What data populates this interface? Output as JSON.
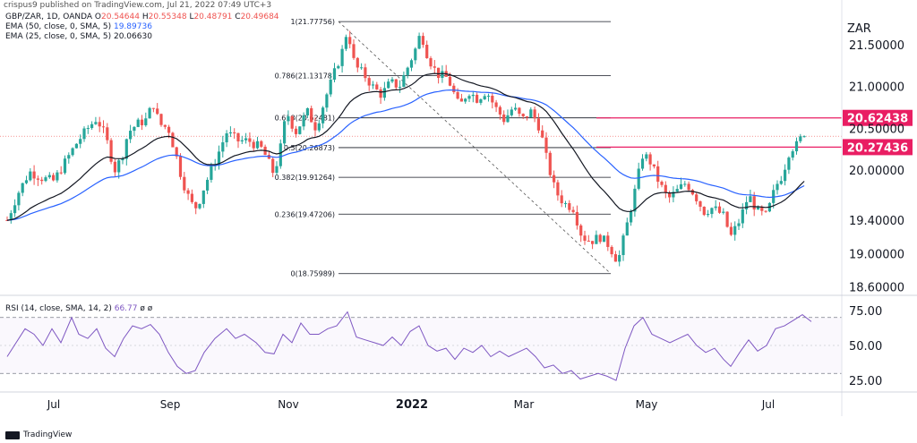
{
  "published": "crispus9 published on TradingView.com, Jul 21, 2022 07:49 UTC+3",
  "brand": "TradingView",
  "currency": "ZAR",
  "legend": {
    "symbol": "GBP/ZAR, 1D, OANDA",
    "ohlc": {
      "O": "20.54644",
      "H": "20.55348",
      "L": "20.48791",
      "C": "20.49684"
    },
    "ema50": {
      "label": "EMA (50, close, 0, SMA, 5)",
      "value": "19.89736",
      "color": "#2962ff"
    },
    "ema25": {
      "label": "EMA (25, close, 0, SMA, 5)",
      "value": "20.06630",
      "color": "#131722"
    },
    "rsi": {
      "label": "RSI (14, close, SMA, 14, 2)",
      "value": "66.77",
      "extra": "ø ø",
      "color": "#7e57c2"
    }
  },
  "colors": {
    "up": "#26a69a",
    "down": "#ef5350",
    "hline": "#e91e63",
    "fib": "#131722"
  },
  "chart_data": [
    {
      "type": "candlestick",
      "x_ticks": [
        "Jul",
        "Sep",
        "Nov",
        "2022",
        "Mar",
        "May",
        "Jul"
      ],
      "y_ticks": [
        "21.50000",
        "21.00000",
        "20.50000",
        "20.00000",
        "19.40000",
        "19.00000",
        "18.60000"
      ],
      "ylim": [
        18.5,
        21.95
      ],
      "approx_close_path": [
        [
          0,
          19.4
        ],
        [
          12,
          19.72
        ],
        [
          25,
          19.98
        ],
        [
          40,
          19.9
        ],
        [
          52,
          19.87
        ],
        [
          65,
          20.1
        ],
        [
          78,
          20.33
        ],
        [
          90,
          20.5
        ],
        [
          100,
          20.62
        ],
        [
          110,
          20.4
        ],
        [
          120,
          20.0
        ],
        [
          128,
          20.15
        ],
        [
          135,
          20.45
        ],
        [
          145,
          20.55
        ],
        [
          155,
          20.6
        ],
        [
          163,
          20.8
        ],
        [
          170,
          20.55
        ],
        [
          180,
          20.5
        ],
        [
          188,
          20.2
        ],
        [
          195,
          19.9
        ],
        [
          205,
          19.6
        ],
        [
          212,
          19.55
        ],
        [
          220,
          19.8
        ],
        [
          232,
          20.1
        ],
        [
          245,
          20.45
        ],
        [
          258,
          20.35
        ],
        [
          270,
          20.35
        ],
        [
          285,
          20.25
        ],
        [
          298,
          19.95
        ],
        [
          305,
          20.25
        ],
        [
          312,
          20.7
        ],
        [
          322,
          20.45
        ],
        [
          335,
          20.7
        ],
        [
          345,
          20.5
        ],
        [
          355,
          20.85
        ],
        [
          365,
          21.15
        ],
        [
          375,
          21.45
        ],
        [
          380,
          21.7
        ],
        [
          388,
          21.25
        ],
        [
          398,
          21.15
        ],
        [
          408,
          21.0
        ],
        [
          418,
          20.9
        ],
        [
          428,
          21.05
        ],
        [
          438,
          21.0
        ],
        [
          446,
          21.2
        ],
        [
          456,
          21.45
        ],
        [
          462,
          21.65
        ],
        [
          470,
          21.35
        ],
        [
          480,
          21.15
        ],
        [
          492,
          21.1
        ],
        [
          505,
          20.75
        ],
        [
          515,
          20.95
        ],
        [
          525,
          20.85
        ],
        [
          535,
          20.95
        ],
        [
          545,
          20.75
        ],
        [
          555,
          20.6
        ],
        [
          565,
          20.75
        ],
        [
          575,
          20.6
        ],
        [
          585,
          20.7
        ],
        [
          595,
          20.5
        ],
        [
          603,
          20.1
        ],
        [
          612,
          19.75
        ],
        [
          622,
          19.6
        ],
        [
          632,
          19.55
        ],
        [
          642,
          19.2
        ],
        [
          652,
          19.15
        ],
        [
          662,
          19.2
        ],
        [
          672,
          19.1
        ],
        [
          682,
          18.9
        ],
        [
          690,
          19.25
        ],
        [
          700,
          19.7
        ],
        [
          710,
          20.2
        ],
        [
          718,
          20.1
        ],
        [
          728,
          19.85
        ],
        [
          738,
          19.65
        ],
        [
          748,
          19.75
        ],
        [
          758,
          19.85
        ],
        [
          768,
          19.7
        ],
        [
          778,
          19.5
        ],
        [
          788,
          19.55
        ],
        [
          800,
          19.45
        ],
        [
          808,
          19.2
        ],
        [
          818,
          19.4
        ],
        [
          828,
          19.7
        ],
        [
          838,
          19.5
        ],
        [
          848,
          19.45
        ],
        [
          858,
          19.8
        ],
        [
          866,
          19.95
        ],
        [
          874,
          20.25
        ],
        [
          882,
          20.3
        ],
        [
          890,
          20.45
        ],
        [
          898,
          20.5
        ]
      ],
      "fib_levels": [
        {
          "label": "1(21.77756)",
          "value": 21.77756
        },
        {
          "label": "0.786(21.13178)",
          "value": 21.13178
        },
        {
          "label": "0.618(20.62481)",
          "value": 20.62481
        },
        {
          "label": "0.5(20.26873)",
          "value": 20.26873
        },
        {
          "label": "0.382(19.91264)",
          "value": 19.91264
        },
        {
          "label": "0.236(19.47206)",
          "value": 19.47206
        },
        {
          "label": "0(18.75989)",
          "value": 18.75989
        }
      ],
      "horizontal_lines": [
        {
          "label": "20.62438",
          "value": 20.62438
        },
        {
          "label": "20.27436",
          "value": 20.27436
        }
      ]
    },
    {
      "type": "line",
      "name": "RSI",
      "y_ticks": [
        "75.00",
        "50.00",
        "25.00"
      ],
      "ylim": [
        18,
        82
      ],
      "bands": [
        70,
        30
      ],
      "approx_values": [
        [
          0,
          42
        ],
        [
          10,
          52
        ],
        [
          20,
          62
        ],
        [
          30,
          58
        ],
        [
          40,
          50
        ],
        [
          50,
          62
        ],
        [
          60,
          52
        ],
        [
          72,
          70
        ],
        [
          80,
          58
        ],
        [
          90,
          55
        ],
        [
          100,
          62
        ],
        [
          110,
          48
        ],
        [
          120,
          42
        ],
        [
          130,
          55
        ],
        [
          140,
          64
        ],
        [
          150,
          62
        ],
        [
          160,
          65
        ],
        [
          170,
          58
        ],
        [
          180,
          45
        ],
        [
          190,
          35
        ],
        [
          200,
          30
        ],
        [
          210,
          32
        ],
        [
          220,
          45
        ],
        [
          232,
          55
        ],
        [
          245,
          62
        ],
        [
          255,
          55
        ],
        [
          265,
          58
        ],
        [
          278,
          52
        ],
        [
          288,
          45
        ],
        [
          298,
          44
        ],
        [
          308,
          58
        ],
        [
          318,
          52
        ],
        [
          328,
          66
        ],
        [
          338,
          58
        ],
        [
          348,
          58
        ],
        [
          358,
          62
        ],
        [
          368,
          64
        ],
        [
          380,
          74
        ],
        [
          390,
          56
        ],
        [
          400,
          54
        ],
        [
          410,
          52
        ],
        [
          420,
          50
        ],
        [
          430,
          56
        ],
        [
          440,
          50
        ],
        [
          450,
          60
        ],
        [
          460,
          64
        ],
        [
          470,
          50
        ],
        [
          480,
          46
        ],
        [
          490,
          48
        ],
        [
          500,
          40
        ],
        [
          510,
          48
        ],
        [
          520,
          45
        ],
        [
          530,
          50
        ],
        [
          540,
          42
        ],
        [
          550,
          46
        ],
        [
          560,
          42
        ],
        [
          570,
          45
        ],
        [
          580,
          48
        ],
        [
          590,
          42
        ],
        [
          600,
          34
        ],
        [
          610,
          36
        ],
        [
          620,
          30
        ],
        [
          630,
          32
        ],
        [
          640,
          26
        ],
        [
          650,
          28
        ],
        [
          660,
          30
        ],
        [
          670,
          28
        ],
        [
          680,
          25
        ],
        [
          690,
          48
        ],
        [
          700,
          64
        ],
        [
          710,
          70
        ],
        [
          720,
          58
        ],
        [
          730,
          55
        ],
        [
          740,
          52
        ],
        [
          750,
          55
        ],
        [
          760,
          58
        ],
        [
          770,
          50
        ],
        [
          780,
          45
        ],
        [
          790,
          48
        ],
        [
          800,
          40
        ],
        [
          808,
          35
        ],
        [
          818,
          45
        ],
        [
          828,
          54
        ],
        [
          838,
          46
        ],
        [
          848,
          50
        ],
        [
          858,
          62
        ],
        [
          868,
          64
        ],
        [
          878,
          68
        ],
        [
          888,
          72
        ],
        [
          898,
          67
        ]
      ]
    }
  ]
}
